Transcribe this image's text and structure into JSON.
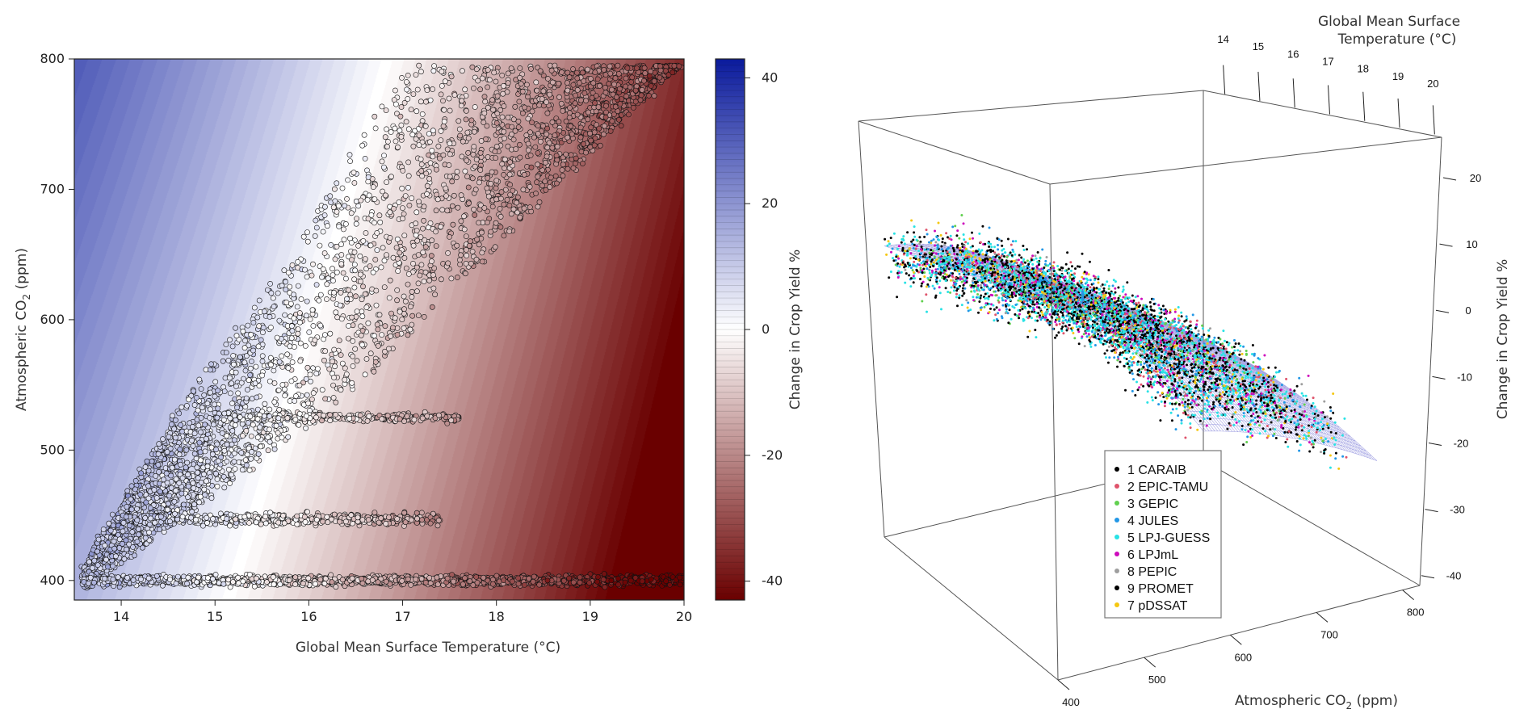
{
  "chart_data": [
    {
      "type": "heatmap",
      "title": "",
      "xlabel": "Global Mean Surface Temperature (°C)",
      "ylabel_main": "Atmospheric CO",
      "ylabel_sub": "2",
      "ylabel_unit": " (ppm)",
      "xlim": [
        13.5,
        20
      ],
      "ylim": [
        385,
        800
      ],
      "x_ticks": [
        "14",
        "15",
        "16",
        "17",
        "18",
        "19",
        "20"
      ],
      "x_tick_values": [
        14,
        15,
        16,
        17,
        18,
        19,
        20
      ],
      "y_ticks": [
        "400",
        "500",
        "600",
        "700",
        "800"
      ],
      "y_tick_values": [
        400,
        500,
        600,
        700,
        800
      ],
      "colorbar": {
        "label": "Change in Crop Yield %",
        "range": [
          -43,
          43
        ],
        "ticks": [
          "40",
          "20",
          "0",
          "-20",
          "-40"
        ],
        "tick_values": [
          40,
          20,
          0,
          -20,
          -40
        ],
        "colors": {
          "positive": "#0a1a9c",
          "zero": "#ffffff",
          "negative": "#6a0000"
        }
      },
      "surface_model": "yield = -9.3*(T-15.2) + 0.04*(CO2-400) - 0.32*(T-15.2)^2",
      "point_regions": [
        {
          "shape": "band",
          "co2": 400,
          "t_range": [
            13.6,
            20
          ]
        },
        {
          "shape": "band",
          "co2": 447,
          "t_range": [
            14.0,
            17.4
          ]
        },
        {
          "shape": "band",
          "co2": 525,
          "t_range": [
            15.0,
            17.6
          ]
        },
        {
          "shape": "diagonal",
          "lower_edge": [
            [
              13.6,
              392
            ],
            [
              16.4,
              540
            ],
            [
              20,
              800
            ]
          ],
          "upper_edge": [
            [
              13.6,
              410
            ],
            [
              14.6,
              530
            ],
            [
              15.8,
              650
            ],
            [
              17.0,
              790
            ]
          ]
        }
      ]
    },
    {
      "type": "scatter",
      "title": "",
      "xlabel_main": "Atmospheric CO",
      "xlabel_sub": "2",
      "xlabel_unit": " (ppm)",
      "ylabel": "Global Mean Surface Temperature (°C)",
      "ylabel_line1": "Global Mean Surface",
      "ylabel_line2": "Temperature (°C)",
      "zlabel": "Change in Crop Yield %",
      "x_ticks": [
        "400",
        "500",
        "600",
        "700",
        "800"
      ],
      "x_tick_values": [
        400,
        500,
        600,
        700,
        800
      ],
      "y_ticks": [
        "14",
        "15",
        "16",
        "17",
        "18",
        "19",
        "20"
      ],
      "y_tick_values": [
        14,
        15,
        16,
        17,
        18,
        19,
        20
      ],
      "z_ticks": [
        "20",
        "10",
        "0",
        "-10",
        "-20",
        "-30",
        "-40"
      ],
      "z_tick_values": [
        20,
        10,
        0,
        -10,
        -20,
        -30,
        -40
      ],
      "legend": {
        "position": "bottom-center",
        "entries": [
          {
            "label": "1 CARAIB",
            "color": "#000000"
          },
          {
            "label": "2 EPIC-TAMU",
            "color": "#df536b"
          },
          {
            "label": "3 GEPIC",
            "color": "#61d04f"
          },
          {
            "label": "4 JULES",
            "color": "#2297e6"
          },
          {
            "label": "5 LPJ-GUESS",
            "color": "#28e2e5"
          },
          {
            "label": "6 LPJmL",
            "color": "#cd0bbc"
          },
          {
            "label": "8 PEPIC",
            "color": "#9e9e9e"
          },
          {
            "label": "9 PROMET",
            "color": "#000000"
          },
          {
            "label": "7 pDSSAT",
            "color": "#f5c710"
          }
        ]
      },
      "surface_color": "#8080d8",
      "series": [
        {
          "name": "1 CARAIB"
        },
        {
          "name": "2 EPIC-TAMU"
        },
        {
          "name": "3 GEPIC"
        },
        {
          "name": "4 JULES"
        },
        {
          "name": "5 LPJ-GUESS"
        },
        {
          "name": "6 LPJmL"
        },
        {
          "name": "8 PEPIC"
        },
        {
          "name": "9 PROMET"
        },
        {
          "name": "7 pDSSAT"
        }
      ]
    }
  ]
}
